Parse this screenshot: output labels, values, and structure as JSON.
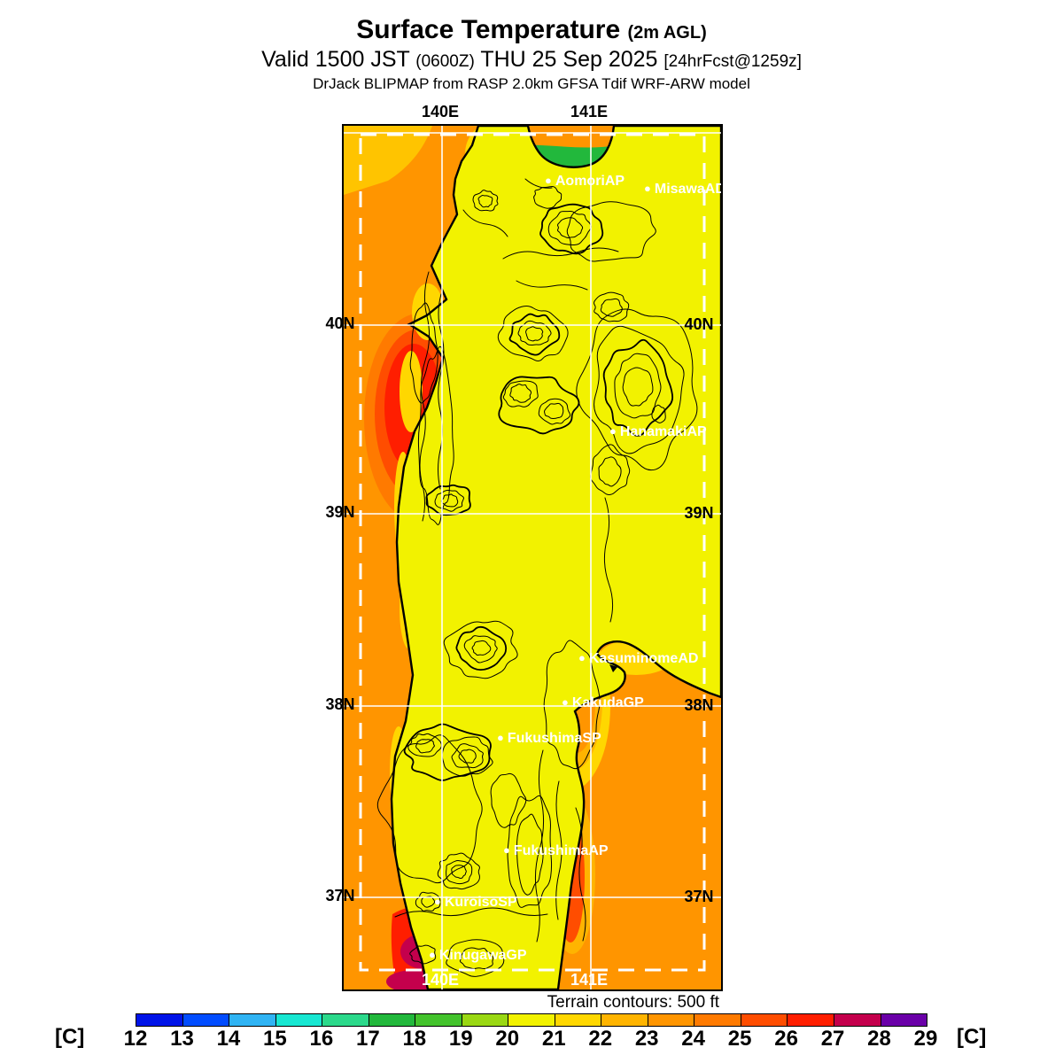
{
  "header": {
    "title": "Surface Temperature",
    "title_suffix": "(2m AGL)",
    "valid_prefix": "Valid 1500 JST",
    "valid_zulu": "(0600Z)",
    "valid_date": "THU 25 Sep 2025",
    "valid_fcst": "[24hrFcst@1259z]",
    "model_line": "DrJack BLIPMAP from RASP 2.0km GFSA Tdif WRF-ARW model"
  },
  "map": {
    "lon_labels": [
      "140E",
      "141E"
    ],
    "lat_labels": [
      "40N",
      "39N",
      "38N",
      "37N"
    ],
    "stations": [
      {
        "label": "AomoriAP"
      },
      {
        "label": "MisawaAD"
      },
      {
        "label": "HanamakiAP"
      },
      {
        "label": "KasuminomeAD"
      },
      {
        "label": "KakudaGP"
      },
      {
        "label": "FukushimaSP"
      },
      {
        "label": "FukushimaAP"
      },
      {
        "label": "KuroisoSP"
      },
      {
        "label": "KinugawaGP"
      }
    ],
    "footnote": "Terrain contours: 500 ft"
  },
  "colorbar": {
    "unit_label": "[C]",
    "ticks": [
      "12",
      "13",
      "14",
      "15",
      "16",
      "17",
      "18",
      "19",
      "20",
      "21",
      "22",
      "23",
      "24",
      "25",
      "26",
      "27",
      "28",
      "29"
    ],
    "colors": [
      "#0013e8",
      "#014cff",
      "#30b4f4",
      "#18e7d2",
      "#2bd98b",
      "#22b83c",
      "#43c32c",
      "#9ad813",
      "#f2f200",
      "#ffd700",
      "#ffb400",
      "#ff9500",
      "#ff7a00",
      "#ff4d00",
      "#ff1e00",
      "#c4004c",
      "#6a00a8"
    ]
  }
}
